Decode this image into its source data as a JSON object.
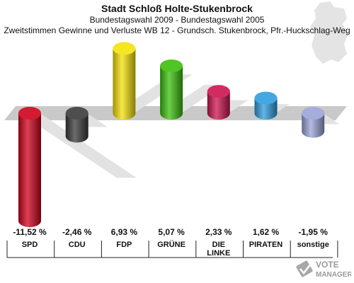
{
  "header": {
    "title": "Stadt Schloß Holte-Stukenbrock",
    "subtitle": "Bundestagswahl 2009 - Bundestagswahl 2005",
    "description": "Zweitstimmen Gewinne und Verluste WB 12 - Grundsch. Stukenbrock, Pfr.-Huckschlag-Weg"
  },
  "watermark": {
    "line1": "VOTE",
    "line2": "MANAGER"
  },
  "chart_data": {
    "type": "bar",
    "categories": [
      "SPD",
      "CDU",
      "FDP",
      "GRÜNE",
      "DIE LINKE",
      "PIRATEN",
      "sonstige"
    ],
    "category_lines": [
      [
        "SPD"
      ],
      [
        "CDU"
      ],
      [
        "FDP"
      ],
      [
        "GRÜNE"
      ],
      [
        "DIE",
        "LINKE"
      ],
      [
        "PIRATEN"
      ],
      [
        "sonstige"
      ]
    ],
    "values": [
      -11.52,
      -2.46,
      6.93,
      5.07,
      2.33,
      1.62,
      -1.95
    ],
    "value_labels": [
      "-11,52 %",
      "-2,46 %",
      "6,93 %",
      "5,07 %",
      "2,33 %",
      "1,62 %",
      "-1,95 %"
    ],
    "colors": [
      "#d0021b",
      "#3a3a3a",
      "#f4e20a",
      "#3cc00c",
      "#cc1450",
      "#2e9de0",
      "#9aa4d8"
    ],
    "ylim": [
      -11.52,
      6.93
    ],
    "grid": false
  }
}
